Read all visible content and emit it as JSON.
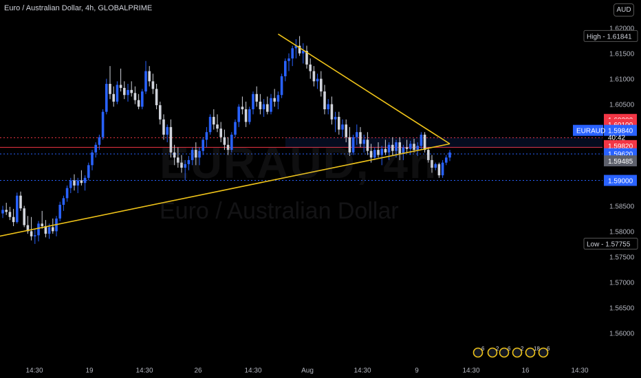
{
  "header": {
    "title": "Euro / Australian Dollar, 4h, GLOBALPRIME"
  },
  "currency_button": "AUD",
  "watermark": {
    "symbol": "EURAUD, 4h",
    "name": "Euro / Australian Dollar"
  },
  "colors": {
    "bull": "#2962ff",
    "bear": "#d1d4dc",
    "trendline": "#f0c419",
    "red_line": "#f23645",
    "blue_dotted": "#2962ff",
    "background": "#000000"
  },
  "chart_data": {
    "type": "candlestick",
    "y_range": [
      1.5545,
      1.6255
    ],
    "y_ticks": [
      "1.62000",
      "1.61500",
      "1.61000",
      "1.60500",
      "1.60000",
      "1.59500",
      "1.59000",
      "1.58500",
      "1.58000",
      "1.57500",
      "1.57000",
      "1.56500",
      "1.56000"
    ],
    "x_ticks": [
      "14:30",
      "19",
      "14:30",
      "26",
      "14:30",
      "Aug",
      "14:30",
      "9",
      "14:30",
      "16",
      "14:30"
    ],
    "ohlc": [
      [
        1.5835,
        1.585,
        1.5826,
        1.5842
      ],
      [
        1.5842,
        1.5856,
        1.5832,
        1.5838
      ],
      [
        1.5838,
        1.5848,
        1.5822,
        1.5828
      ],
      [
        1.5828,
        1.5844,
        1.581,
        1.5818
      ],
      [
        1.5818,
        1.5876,
        1.5815,
        1.587
      ],
      [
        1.587,
        1.5878,
        1.584,
        1.5845
      ],
      [
        1.5845,
        1.585,
        1.5808,
        1.5812
      ],
      [
        1.5812,
        1.583,
        1.5795,
        1.58
      ],
      [
        1.58,
        1.5828,
        1.5782,
        1.579
      ],
      [
        1.579,
        1.5805,
        1.5775,
        1.5792
      ],
      [
        1.5792,
        1.582,
        1.578,
        1.5815
      ],
      [
        1.5815,
        1.584,
        1.5805,
        1.581
      ],
      [
        1.581,
        1.5822,
        1.5788,
        1.5795
      ],
      [
        1.5795,
        1.5815,
        1.5785,
        1.5808
      ],
      [
        1.5808,
        1.5825,
        1.5795,
        1.58
      ],
      [
        1.58,
        1.583,
        1.579,
        1.5825
      ],
      [
        1.5825,
        1.5858,
        1.582,
        1.5852
      ],
      [
        1.5852,
        1.587,
        1.584,
        1.5865
      ],
      [
        1.5865,
        1.589,
        1.5858,
        1.5885
      ],
      [
        1.5885,
        1.5905,
        1.5875,
        1.59
      ],
      [
        1.59,
        1.5912,
        1.588,
        1.589
      ],
      [
        1.589,
        1.5905,
        1.5875,
        1.59
      ],
      [
        1.59,
        1.592,
        1.589,
        1.5895
      ],
      [
        1.5895,
        1.591,
        1.588,
        1.5905
      ],
      [
        1.5905,
        1.5935,
        1.59,
        1.593
      ],
      [
        1.593,
        1.596,
        1.592,
        1.5955
      ],
      [
        1.5955,
        1.5975,
        1.5945,
        1.597
      ],
      [
        1.597,
        1.599,
        1.596,
        1.5985
      ],
      [
        1.5985,
        1.604,
        1.598,
        1.6035
      ],
      [
        1.6035,
        1.61,
        1.603,
        1.609
      ],
      [
        1.609,
        1.6125,
        1.606,
        1.607
      ],
      [
        1.607,
        1.6085,
        1.6045,
        1.6055
      ],
      [
        1.6055,
        1.6095,
        1.605,
        1.6088
      ],
      [
        1.6088,
        1.612,
        1.6075,
        1.6082
      ],
      [
        1.6082,
        1.6095,
        1.606,
        1.6068
      ],
      [
        1.6068,
        1.609,
        1.6055,
        1.6078
      ],
      [
        1.6078,
        1.6095,
        1.6065,
        1.6072
      ],
      [
        1.6072,
        1.6085,
        1.605,
        1.6058
      ],
      [
        1.6058,
        1.607,
        1.604,
        1.6045
      ],
      [
        1.6045,
        1.608,
        1.604,
        1.6075
      ],
      [
        1.6075,
        1.6135,
        1.607,
        1.6115
      ],
      [
        1.6115,
        1.6125,
        1.6085,
        1.6095
      ],
      [
        1.6095,
        1.611,
        1.607,
        1.608
      ],
      [
        1.608,
        1.609,
        1.604,
        1.6048
      ],
      [
        1.6048,
        1.6055,
        1.601,
        1.602
      ],
      [
        1.602,
        1.603,
        1.598,
        1.599
      ],
      [
        1.599,
        1.601,
        1.5975,
        1.6005
      ],
      [
        1.6005,
        1.602,
        1.5945,
        1.5955
      ],
      [
        1.5955,
        1.597,
        1.593,
        1.5945
      ],
      [
        1.5945,
        1.5965,
        1.5925,
        1.5935
      ],
      [
        1.5935,
        1.595,
        1.5915,
        1.5925
      ],
      [
        1.5925,
        1.594,
        1.59,
        1.5932
      ],
      [
        1.5932,
        1.5948,
        1.592,
        1.594
      ],
      [
        1.594,
        1.5965,
        1.593,
        1.596
      ],
      [
        1.596,
        1.5975,
        1.593,
        1.5945
      ],
      [
        1.5945,
        1.5965,
        1.593,
        1.5958
      ],
      [
        1.5958,
        1.5985,
        1.595,
        1.598
      ],
      [
        1.598,
        1.6005,
        1.5965,
        1.5995
      ],
      [
        1.5995,
        1.603,
        1.599,
        1.6025
      ],
      [
        1.6025,
        1.604,
        1.6,
        1.601
      ],
      [
        1.601,
        1.603,
        1.5995,
        1.6002
      ],
      [
        1.6002,
        1.6015,
        1.5975,
        1.5985
      ],
      [
        1.5985,
        1.6,
        1.596,
        1.597
      ],
      [
        1.597,
        1.5985,
        1.595,
        1.596
      ],
      [
        1.596,
        1.5995,
        1.5955,
        1.599
      ],
      [
        1.599,
        1.602,
        1.5985,
        1.6015
      ],
      [
        1.6015,
        1.605,
        1.6005,
        1.6045
      ],
      [
        1.6045,
        1.6065,
        1.603,
        1.604
      ],
      [
        1.604,
        1.6055,
        1.6005,
        1.6015
      ],
      [
        1.6015,
        1.6045,
        1.601,
        1.604
      ],
      [
        1.604,
        1.6075,
        1.603,
        1.607
      ],
      [
        1.607,
        1.6085,
        1.6045,
        1.6055
      ],
      [
        1.6055,
        1.607,
        1.603,
        1.604
      ],
      [
        1.604,
        1.606,
        1.6025,
        1.605
      ],
      [
        1.605,
        1.6065,
        1.603,
        1.6035
      ],
      [
        1.6035,
        1.607,
        1.603,
        1.6062
      ],
      [
        1.6062,
        1.608,
        1.6045,
        1.6055
      ],
      [
        1.6055,
        1.6075,
        1.604,
        1.6068
      ],
      [
        1.6068,
        1.611,
        1.6062,
        1.6105
      ],
      [
        1.6105,
        1.614,
        1.6095,
        1.6135
      ],
      [
        1.6135,
        1.615,
        1.6115,
        1.614
      ],
      [
        1.614,
        1.6165,
        1.6125,
        1.616
      ],
      [
        1.616,
        1.6178,
        1.614,
        1.6165
      ],
      [
        1.6165,
        1.6184,
        1.6145,
        1.615
      ],
      [
        1.615,
        1.617,
        1.613,
        1.6155
      ],
      [
        1.6155,
        1.6165,
        1.612,
        1.6128
      ],
      [
        1.6128,
        1.614,
        1.61,
        1.6115
      ],
      [
        1.6115,
        1.6125,
        1.6085,
        1.6095
      ],
      [
        1.6095,
        1.611,
        1.608,
        1.61
      ],
      [
        1.61,
        1.6115,
        1.6065,
        1.6075
      ],
      [
        1.6075,
        1.6088,
        1.603,
        1.604
      ],
      [
        1.604,
        1.606,
        1.603,
        1.605
      ],
      [
        1.605,
        1.6065,
        1.601,
        1.602
      ],
      [
        1.602,
        1.6035,
        1.5995,
        1.6025
      ],
      [
        1.6025,
        1.6035,
        1.599,
        1.6
      ],
      [
        1.6,
        1.602,
        1.5985,
        1.601
      ],
      [
        1.601,
        1.602,
        1.5975,
        1.5985
      ],
      [
        1.5985,
        1.6005,
        1.5948,
        1.5955
      ],
      [
        1.5955,
        1.599,
        1.595,
        1.5985
      ],
      [
        1.5985,
        1.601,
        1.597,
        1.5995
      ],
      [
        1.5995,
        1.6005,
        1.5965,
        1.5972
      ],
      [
        1.5972,
        1.599,
        1.5955,
        1.598
      ],
      [
        1.598,
        1.5995,
        1.595,
        1.5958
      ],
      [
        1.5958,
        1.5972,
        1.5935,
        1.5945
      ],
      [
        1.5945,
        1.5965,
        1.594,
        1.596
      ],
      [
        1.596,
        1.5975,
        1.5945,
        1.595
      ],
      [
        1.595,
        1.5968,
        1.593,
        1.5962
      ],
      [
        1.5962,
        1.598,
        1.595,
        1.5955
      ],
      [
        1.5955,
        1.5975,
        1.594,
        1.597
      ],
      [
        1.597,
        1.5985,
        1.595,
        1.5958
      ],
      [
        1.5958,
        1.598,
        1.5945,
        1.5975
      ],
      [
        1.5975,
        1.5985,
        1.594,
        1.5952
      ],
      [
        1.5952,
        1.597,
        1.594,
        1.5965
      ],
      [
        1.5965,
        1.598,
        1.5955,
        1.5962
      ],
      [
        1.5962,
        1.5978,
        1.595,
        1.5972
      ],
      [
        1.5972,
        1.5982,
        1.5955,
        1.596
      ],
      [
        1.596,
        1.5975,
        1.5948,
        1.5968
      ],
      [
        1.5968,
        1.5995,
        1.596,
        1.599
      ],
      [
        1.599,
        1.5995,
        1.5955,
        1.596
      ],
      [
        1.596,
        1.5965,
        1.5935,
        1.594
      ],
      [
        1.594,
        1.595,
        1.5915,
        1.5925
      ],
      [
        1.5925,
        1.5935,
        1.592,
        1.5932
      ],
      [
        1.5932,
        1.5935,
        1.5905,
        1.591
      ],
      [
        1.591,
        1.594,
        1.5905,
        1.5935
      ],
      [
        1.5935,
        1.595,
        1.593,
        1.5945
      ],
      [
        1.5945,
        1.596,
        1.5938,
        1.5955
      ]
    ],
    "price_levels": [
      {
        "name": "red-upper",
        "price": 1.5984,
        "color": "#f23645",
        "style": "dotted"
      },
      {
        "name": "red-solid",
        "price": 1.5965,
        "color": "#f23645",
        "style": "solid"
      },
      {
        "name": "blue-upper",
        "price": 1.5952,
        "color": "#2962ff",
        "style": "dotted"
      },
      {
        "name": "blue-lower",
        "price": 1.59,
        "color": "#2962ff",
        "style": "dotted"
      }
    ],
    "trendlines": [
      {
        "from": {
          "bar": -46,
          "price": 1.5725
        },
        "to": {
          "bar": 125,
          "price": 1.5972
        }
      },
      {
        "from": {
          "bar": 77,
          "price": 1.6188
        },
        "to": {
          "bar": 125,
          "price": 1.5972
        }
      }
    ],
    "price_labels": [
      {
        "text": "High - 1.61841",
        "price": 1.61841,
        "style": "outline"
      },
      {
        "text": "1.60200",
        "price": 1.602,
        "style": "red"
      },
      {
        "text": "1.60100",
        "price": 1.601,
        "style": "red"
      },
      {
        "text": "1.59840",
        "price": 1.59985,
        "style": "blue",
        "prefix": "EURAUD"
      },
      {
        "text": "40:42",
        "price": 1.5985,
        "style": "blue-sub"
      },
      {
        "text": "1.59820",
        "price": 1.59685,
        "style": "red"
      },
      {
        "text": "1.59620",
        "price": 1.59525,
        "style": "blue"
      },
      {
        "text": "1.59485",
        "price": 1.59385,
        "style": "grey"
      },
      {
        "text": "1.59000",
        "price": 1.59,
        "style": "blue"
      },
      {
        "text": "Low - 1.57755",
        "price": 1.57755,
        "style": "outline"
      }
    ],
    "events": [
      "6",
      "2",
      "6",
      "2",
      "18",
      "6"
    ]
  }
}
